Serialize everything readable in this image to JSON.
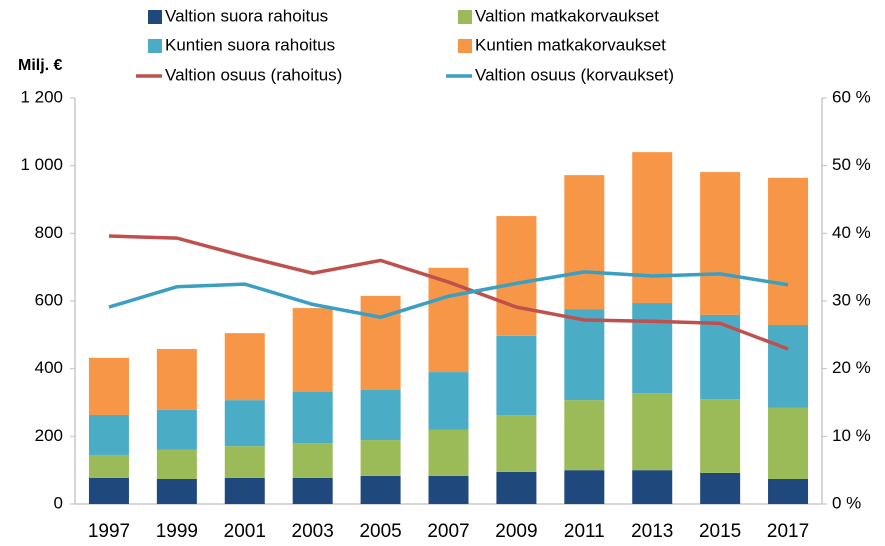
{
  "chart_data": {
    "type": "bar",
    "y_axis_label": "Milj. €",
    "categories": [
      "1997",
      "1999",
      "2001",
      "2003",
      "2005",
      "2007",
      "2009",
      "2011",
      "2013",
      "2015",
      "2017"
    ],
    "series": [
      {
        "name": "Valtion suora rahoitus",
        "color": "#1f497d",
        "values": [
          77,
          74,
          77,
          77,
          83,
          83,
          95,
          100,
          100,
          92,
          74
        ]
      },
      {
        "name": "Valtion matkakorvaukset",
        "color": "#9bbb59",
        "values": [
          68,
          86,
          94,
          103,
          106,
          136,
          168,
          207,
          228,
          218,
          210
        ]
      },
      {
        "name": "Kuntien suora rahoitus",
        "color": "#4bacc6",
        "values": [
          118,
          118,
          136,
          151,
          148,
          171,
          234,
          269,
          266,
          249,
          245
        ]
      },
      {
        "name": "Kuntien matkakorvaukset",
        "color": "#f79646",
        "values": [
          169,
          180,
          198,
          248,
          278,
          308,
          354,
          396,
          446,
          422,
          435
        ]
      },
      {
        "name": "Valtion osuus (rahoitus)",
        "type": "line",
        "axis": "y2",
        "color": "#c0504d",
        "values": [
          39.6,
          39.3,
          36.6,
          34.1,
          36.0,
          32.8,
          29.1,
          27.2,
          27.0,
          26.7,
          22.9
        ]
      },
      {
        "name": "Valtion osuus (korvaukset)",
        "type": "line",
        "axis": "y2",
        "color": "#3a9fc0",
        "values": [
          29.1,
          32.1,
          32.5,
          29.5,
          27.6,
          30.7,
          32.6,
          34.3,
          33.7,
          34.0,
          32.4
        ]
      }
    ],
    "stacked": true,
    "ylim": [
      0,
      1200
    ],
    "yticks": [
      0,
      200,
      400,
      600,
      800,
      {
        "value": 1000,
        "label": "1 000"
      },
      {
        "value": 1200,
        "label": "1 200"
      }
    ],
    "y2lim": [
      0,
      60
    ],
    "y2ticks": [
      {
        "value": 0,
        "label": "0 %"
      },
      {
        "value": 10,
        "label": "10 %"
      },
      {
        "value": 20,
        "label": "20 %"
      },
      {
        "value": 30,
        "label": "30 %"
      },
      {
        "value": 40,
        "label": "40 %"
      },
      {
        "value": 50,
        "label": "50 %"
      },
      {
        "value": 60,
        "label": "60 %"
      }
    ],
    "grid": false,
    "legend": "top"
  }
}
